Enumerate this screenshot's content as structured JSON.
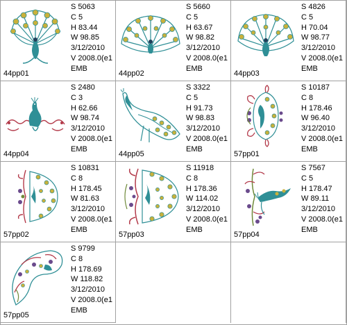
{
  "colors": {
    "teal": "#2f8f96",
    "gold": "#c9b13b",
    "red": "#b33a4a",
    "purple": "#6a4a8c",
    "olive": "#6f8a3a",
    "dark": "#1f3f5a"
  },
  "files": [
    {
      "name": "44pp01",
      "stats": [
        "S  5063",
        "C  5",
        "H  83.44",
        "W  98.85",
        "3/12/2010",
        "V  2008.0(e1",
        "EMB"
      ],
      "icon": "peacock-fan-icon"
    },
    {
      "name": "44pp02",
      "stats": [
        "S  5660",
        "C  5",
        "H  63.67",
        "W  98.82",
        "3/12/2010",
        "V  2008.0(e1",
        "EMB"
      ],
      "icon": "peacock-fan-wide-icon"
    },
    {
      "name": "44pp03",
      "stats": [
        "S  4826",
        "C  5",
        "H  70.04",
        "W  98.77",
        "3/12/2010",
        "V  2008.0(e1",
        "EMB"
      ],
      "icon": "peacock-fan-icon"
    },
    {
      "name": "44pp04",
      "stats": [
        "S  2480",
        "C  3",
        "H  62.66",
        "W  98.74",
        "3/12/2010",
        "V  2008.0(e1",
        "EMB"
      ],
      "icon": "peacock-scroll-icon"
    },
    {
      "name": "44pp05",
      "stats": [
        "S  3322",
        "C  5",
        "H  91.73",
        "W  98.83",
        "3/12/2010",
        "V  2008.0(e1",
        "EMB"
      ],
      "icon": "peacock-walking-icon"
    },
    {
      "name": "57pp01",
      "stats": [
        "S  10187",
        "C  8",
        "H  178.46",
        "W  96.40",
        "3/12/2010",
        "V  2008.0(e1",
        "EMB"
      ],
      "icon": "peacock-floral-icon"
    },
    {
      "name": "57pp02",
      "stats": [
        "S  10831",
        "C  8",
        "H  178.45",
        "W  81.63",
        "3/12/2010",
        "V  2008.0(e1",
        "EMB"
      ],
      "icon": "peacock-half-fan-icon"
    },
    {
      "name": "57pp03",
      "stats": [
        "S  11918",
        "C  8",
        "H  178.36",
        "W  114.02",
        "3/12/2010",
        "V  2008.0(e1",
        "EMB"
      ],
      "icon": "peacock-half-fan-icon"
    },
    {
      "name": "57pp04",
      "stats": [
        "S  7567",
        "C  5",
        "H  178.47",
        "W  89.11",
        "3/12/2010",
        "V  2008.0(e1",
        "EMB"
      ],
      "icon": "peacock-vine-icon"
    },
    {
      "name": "57pp05",
      "stats": [
        "S  9799",
        "C  8",
        "H  178.69",
        "W  118.82",
        "3/12/2010",
        "V  2008.0(e1",
        "EMB"
      ],
      "icon": "peacock-paisley-icon"
    }
  ]
}
